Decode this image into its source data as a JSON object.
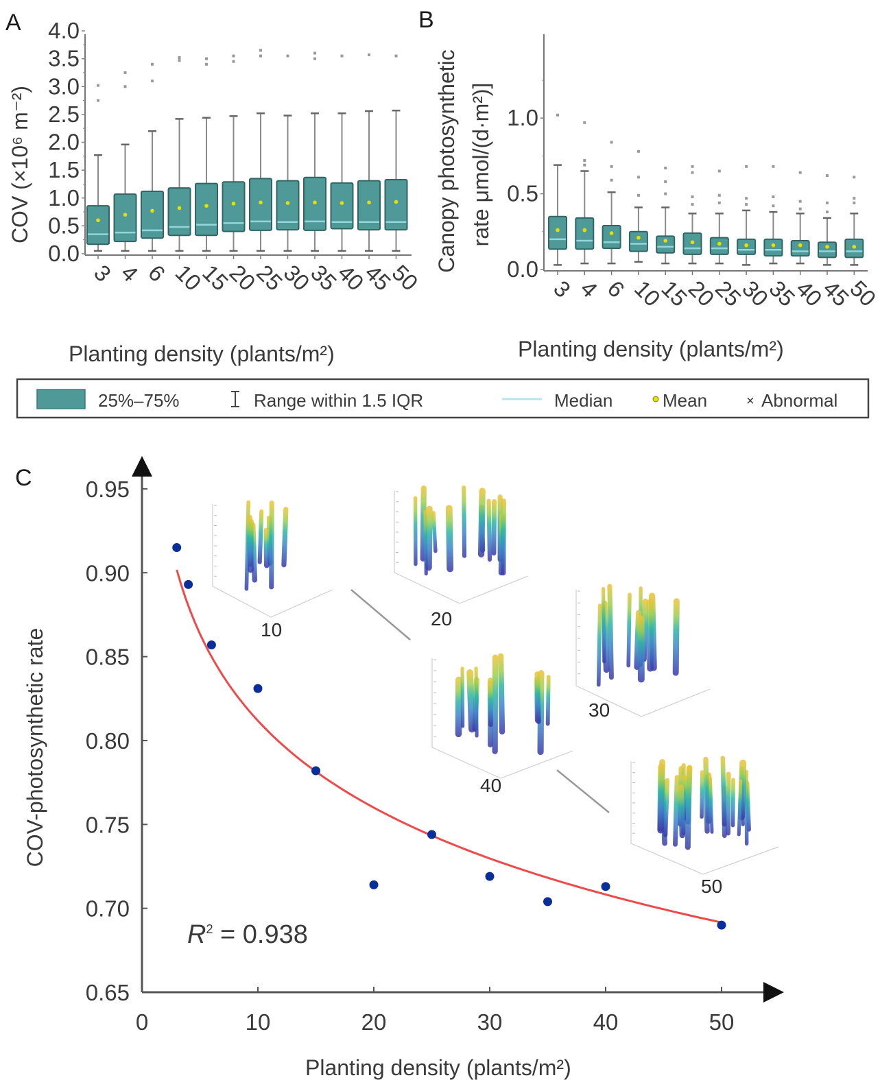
{
  "figure": {
    "legend": {
      "items": [
        {
          "key": "box",
          "label": "25%–75%"
        },
        {
          "key": "whisker",
          "label": "Range within 1.5 IQR"
        },
        {
          "key": "median",
          "label": "Median"
        },
        {
          "key": "mean",
          "label": "Mean"
        },
        {
          "key": "abnormal",
          "label": "Abnormal"
        }
      ]
    },
    "colors": {
      "box_fill": "#4f9a99",
      "box_edge": "#2f6665",
      "median": "#9fe0e6",
      "mean": "#e6e000",
      "whisker": "#8a8a8a",
      "outlier": "#9a9a9a",
      "scatter_point": "#0a2f9a",
      "fit_line": "#ef4a4a"
    }
  },
  "chart_data": [
    {
      "panel": "A",
      "type": "box",
      "title": "",
      "xlabel": "Planting density (plants/m²)",
      "ylabel": "COV (×10⁶ m⁻²)",
      "ylim": [
        0,
        4.0
      ],
      "yticks": [
        "0.0",
        "0.5",
        "1.0",
        "1.5",
        "2.0",
        "2.5",
        "3.0",
        "3.5",
        "4.0"
      ],
      "yticks_values": [
        0,
        0.5,
        1.0,
        1.5,
        2.0,
        2.5,
        3.0,
        3.5,
        4.0
      ],
      "categories": [
        "3",
        "4",
        "6",
        "10",
        "15",
        "20",
        "25",
        "30",
        "35",
        "40",
        "45",
        "50"
      ],
      "boxes": [
        {
          "q1": 0.17,
          "median": 0.35,
          "q3": 0.86,
          "mean": 0.6,
          "wlo": 0.05,
          "whi": 1.77,
          "outliers": [
            2.75,
            3.02
          ]
        },
        {
          "q1": 0.22,
          "median": 0.38,
          "q3": 1.07,
          "mean": 0.7,
          "wlo": 0.05,
          "whi": 1.96,
          "outliers": [
            3.0,
            3.25
          ]
        },
        {
          "q1": 0.28,
          "median": 0.42,
          "q3": 1.12,
          "mean": 0.77,
          "wlo": 0.05,
          "whi": 2.2,
          "outliers": [
            3.1,
            3.4
          ]
        },
        {
          "q1": 0.33,
          "median": 0.48,
          "q3": 1.18,
          "mean": 0.82,
          "wlo": 0.05,
          "whi": 2.42,
          "outliers": [
            3.47,
            3.52
          ]
        },
        {
          "q1": 0.33,
          "median": 0.52,
          "q3": 1.26,
          "mean": 0.86,
          "wlo": 0.05,
          "whi": 2.44,
          "outliers": [
            3.4,
            3.5
          ]
        },
        {
          "q1": 0.4,
          "median": 0.55,
          "q3": 1.29,
          "mean": 0.9,
          "wlo": 0.05,
          "whi": 2.47,
          "outliers": [
            3.45,
            3.55
          ]
        },
        {
          "q1": 0.42,
          "median": 0.58,
          "q3": 1.35,
          "mean": 0.92,
          "wlo": 0.05,
          "whi": 2.52,
          "outliers": [
            3.55,
            3.65
          ]
        },
        {
          "q1": 0.43,
          "median": 0.57,
          "q3": 1.31,
          "mean": 0.91,
          "wlo": 0.05,
          "whi": 2.48,
          "outliers": [
            3.55
          ]
        },
        {
          "q1": 0.42,
          "median": 0.58,
          "q3": 1.37,
          "mean": 0.92,
          "wlo": 0.05,
          "whi": 2.52,
          "outliers": [
            3.5,
            3.6
          ]
        },
        {
          "q1": 0.45,
          "median": 0.57,
          "q3": 1.27,
          "mean": 0.91,
          "wlo": 0.05,
          "whi": 2.52,
          "outliers": [
            3.55
          ]
        },
        {
          "q1": 0.43,
          "median": 0.57,
          "q3": 1.31,
          "mean": 0.92,
          "wlo": 0.05,
          "whi": 2.56,
          "outliers": [
            3.57
          ]
        },
        {
          "q1": 0.43,
          "median": 0.57,
          "q3": 1.33,
          "mean": 0.93,
          "wlo": 0.05,
          "whi": 2.57,
          "outliers": [
            3.55
          ]
        }
      ]
    },
    {
      "panel": "B",
      "type": "box",
      "title": "",
      "xlabel": "Planting density (plants/m²)",
      "ylabel_line1": "Canopy photosynthetic",
      "ylabel_line2": "rate μmol/(d·m²)]",
      "ylim": [
        0,
        1.25
      ],
      "yticks": [
        "0.0",
        "0.5",
        "1.0"
      ],
      "yticks_values": [
        0,
        0.5,
        1.0
      ],
      "categories": [
        "3",
        "4",
        "6",
        "10",
        "15",
        "20",
        "25",
        "30",
        "35",
        "40",
        "45",
        "50"
      ],
      "boxes": [
        {
          "q1": 0.135,
          "median": 0.2,
          "q3": 0.35,
          "mean": 0.26,
          "wlo": 0.03,
          "whi": 0.69,
          "outliers": [
            1.02
          ]
        },
        {
          "q1": 0.135,
          "median": 0.19,
          "q3": 0.34,
          "mean": 0.26,
          "wlo": 0.04,
          "whi": 0.65,
          "outliers": [
            0.69,
            0.72,
            0.97
          ]
        },
        {
          "q1": 0.14,
          "median": 0.18,
          "q3": 0.29,
          "mean": 0.24,
          "wlo": 0.04,
          "whi": 0.51,
          "outliers": [
            0.59,
            0.68,
            0.84
          ]
        },
        {
          "q1": 0.12,
          "median": 0.17,
          "q3": 0.25,
          "mean": 0.21,
          "wlo": 0.05,
          "whi": 0.41,
          "outliers": [
            0.49,
            0.61,
            0.78
          ]
        },
        {
          "q1": 0.11,
          "median": 0.15,
          "q3": 0.22,
          "mean": 0.19,
          "wlo": 0.04,
          "whi": 0.41,
          "outliers": [
            0.5,
            0.58,
            0.67
          ]
        },
        {
          "q1": 0.1,
          "median": 0.14,
          "q3": 0.24,
          "mean": 0.18,
          "wlo": 0.04,
          "whi": 0.37,
          "outliers": [
            0.43,
            0.48,
            0.64,
            0.68
          ]
        },
        {
          "q1": 0.1,
          "median": 0.14,
          "q3": 0.21,
          "mean": 0.17,
          "wlo": 0.04,
          "whi": 0.37,
          "outliers": [
            0.44,
            0.49,
            0.65
          ]
        },
        {
          "q1": 0.1,
          "median": 0.13,
          "q3": 0.2,
          "mean": 0.16,
          "wlo": 0.03,
          "whi": 0.39,
          "outliers": [
            0.43,
            0.47,
            0.68
          ]
        },
        {
          "q1": 0.09,
          "median": 0.13,
          "q3": 0.2,
          "mean": 0.16,
          "wlo": 0.04,
          "whi": 0.38,
          "outliers": [
            0.42,
            0.48,
            0.68
          ]
        },
        {
          "q1": 0.09,
          "median": 0.12,
          "q3": 0.19,
          "mean": 0.16,
          "wlo": 0.04,
          "whi": 0.37,
          "outliers": [
            0.4,
            0.45,
            0.64
          ]
        },
        {
          "q1": 0.08,
          "median": 0.12,
          "q3": 0.18,
          "mean": 0.15,
          "wlo": 0.03,
          "whi": 0.34,
          "outliers": [
            0.38,
            0.44,
            0.62
          ]
        },
        {
          "q1": 0.08,
          "median": 0.12,
          "q3": 0.2,
          "mean": 0.15,
          "wlo": 0.03,
          "whi": 0.37,
          "outliers": [
            0.44,
            0.47,
            0.61
          ]
        }
      ]
    },
    {
      "panel": "C",
      "type": "scatter",
      "title": "",
      "xlabel": "Planting density (plants/m²)",
      "ylabel": "COV-photosynthetic rate",
      "xlim": [
        0,
        55
      ],
      "ylim": [
        0.65,
        0.95
      ],
      "xticks": [
        "0",
        "10",
        "20",
        "30",
        "40",
        "50"
      ],
      "xticks_values": [
        0,
        10,
        20,
        30,
        40,
        50
      ],
      "yticks": [
        "0.65",
        "0.70",
        "0.75",
        "0.80",
        "0.85",
        "0.90",
        "0.95"
      ],
      "yticks_values": [
        0.65,
        0.7,
        0.75,
        0.8,
        0.85,
        0.9,
        0.95
      ],
      "x": [
        3,
        4,
        6,
        10,
        15,
        20,
        25,
        30,
        35,
        40,
        50
      ],
      "y": [
        0.915,
        0.893,
        0.857,
        0.831,
        0.782,
        0.714,
        0.744,
        0.719,
        0.704,
        0.713,
        0.69
      ],
      "fit": {
        "type": "logarithmic",
        "a": 0.9838,
        "b": -0.0747,
        "x_range": [
          3,
          50
        ],
        "r2_label": "R",
        "r2_sup": "2",
        "r2_text": " = 0.938"
      },
      "annotations": [
        {
          "label": "10",
          "kind": "3d-canopy-inset"
        },
        {
          "label": "20",
          "kind": "3d-canopy-inset"
        },
        {
          "label": "30",
          "kind": "3d-canopy-inset"
        },
        {
          "label": "40",
          "kind": "3d-canopy-inset"
        },
        {
          "label": "50",
          "kind": "3d-canopy-inset"
        }
      ]
    }
  ]
}
